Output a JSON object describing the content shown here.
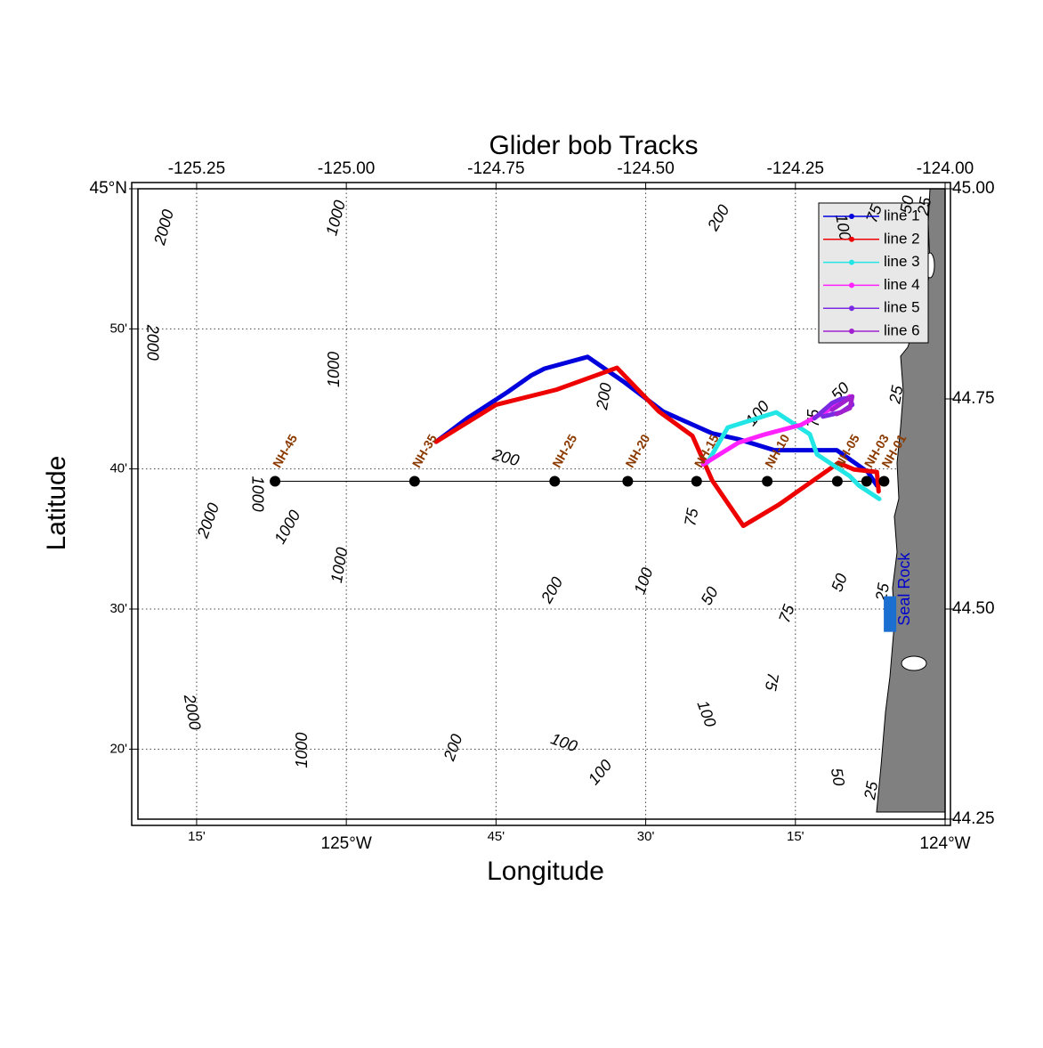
{
  "chart_data": {
    "type": "line",
    "title": "Glider bob Tracks",
    "x_label": "Longitude",
    "y_label": "Latitude",
    "xlim": [
      -125.348,
      -124.0
    ],
    "ylim": [
      44.25,
      45.0
    ],
    "grid": true,
    "legend": "upper right",
    "xticks": [
      -125.25,
      {
        "value": -125.0,
        "label": "-125.00"
      },
      -124.75,
      {
        "value": -124.5,
        "label": "-124.50"
      },
      -124.25,
      {
        "value": -124.0,
        "label": "-124.00"
      }
    ],
    "xticks_bottom": [
      {
        "value": -125.25,
        "label": "15'"
      },
      {
        "value": -125.0,
        "label": "125°W"
      },
      {
        "value": -124.75,
        "label": "45'"
      },
      {
        "value": -124.5,
        "label": "30'"
      },
      {
        "value": -124.25,
        "label": "15'"
      },
      {
        "value": -124.0,
        "label": "124°W"
      }
    ],
    "yticks": [
      {
        "value": 45.0,
        "label": "45.00"
      },
      44.75,
      {
        "value": 44.5,
        "label": "44.50"
      },
      44.25
    ],
    "yticks_left": [
      {
        "value": 45.0,
        "label": "45°N"
      },
      {
        "value": 44.8333,
        "label": "50'"
      },
      {
        "value": 44.6667,
        "label": "40'"
      },
      {
        "value": 44.5,
        "label": "30'"
      },
      {
        "value": 44.3333,
        "label": "20'"
      }
    ],
    "series": [
      {
        "name": "line 1",
        "color": "#0000dd",
        "x": [
          -124.85,
          -124.798,
          -124.731,
          -124.691,
          -124.669,
          -124.597,
          -124.538,
          -124.471,
          -124.389,
          -124.345,
          -124.285,
          -124.181,
          -124.129,
          -124.114
        ],
        "values": [
          44.699,
          44.727,
          44.758,
          44.778,
          44.786,
          44.8,
          44.771,
          44.735,
          44.709,
          44.702,
          44.689,
          44.689,
          44.663,
          44.647
        ]
      },
      {
        "name": "line 2",
        "color": "#ee0000",
        "x": [
          -124.85,
          -124.75,
          -124.649,
          -124.548,
          -124.478,
          -124.422,
          -124.389,
          -124.337,
          -124.278,
          -124.178,
          -124.152,
          -124.114,
          -124.111
        ],
        "values": [
          44.699,
          44.743,
          44.761,
          44.787,
          44.735,
          44.706,
          44.653,
          44.599,
          44.624,
          44.674,
          44.666,
          44.663,
          44.64
        ]
      },
      {
        "name": "line 3",
        "color": "#22e6e6",
        "x": [
          -124.397,
          -124.363,
          -124.282,
          -124.226,
          -124.214,
          -124.159,
          -124.144,
          -124.11
        ],
        "values": [
          44.674,
          44.716,
          44.734,
          44.708,
          44.684,
          44.658,
          44.647,
          44.631
        ]
      },
      {
        "name": "line 4",
        "color": "#ff22ff",
        "x": [
          -124.404,
          -124.345,
          -124.3,
          -124.241,
          -124.189,
          -124.159
        ],
        "values": [
          44.672,
          44.698,
          44.708,
          44.719,
          44.739,
          44.753
        ]
      },
      {
        "name": "line 5",
        "color": "#7a2be2",
        "x": [
          -124.218,
          -124.189,
          -124.174,
          -124.159,
          -124.155,
          -124.174,
          -124.204
        ],
        "values": [
          44.727,
          44.745,
          44.75,
          44.751,
          44.743,
          44.734,
          44.729
        ]
      },
      {
        "name": "line 6",
        "color": "#a020d0",
        "x": [
          -124.189,
          -124.166,
          -124.155,
          -124.159,
          -124.181
        ],
        "values": [
          44.737,
          44.748,
          44.753,
          44.739,
          44.732
        ]
      }
    ],
    "stations": [
      {
        "name": "NH-45",
        "x": -125.119,
        "y": 44.652
      },
      {
        "name": "NH-35",
        "x": -124.886,
        "y": 44.652
      },
      {
        "name": "NH-25",
        "x": -124.652,
        "y": 44.652
      },
      {
        "name": "NH-20",
        "x": -124.53,
        "y": 44.652
      },
      {
        "name": "NH-15",
        "x": -124.415,
        "y": 44.652
      },
      {
        "name": "NH-10",
        "x": -124.297,
        "y": 44.652
      },
      {
        "name": "NH-05",
        "x": -124.18,
        "y": 44.652
      },
      {
        "name": "NH-03",
        "x": -124.131,
        "y": 44.652
      },
      {
        "name": "NH-01",
        "x": -124.102,
        "y": 44.652
      }
    ],
    "landmark": {
      "label": "Seal Rock",
      "x": -124.092,
      "y": 44.494
    },
    "contour_labels": [
      {
        "text": "2000",
        "x": -125.303,
        "y": 44.954
      },
      {
        "text": "1000",
        "x": -125.016,
        "y": 44.965
      },
      {
        "text": "200",
        "x": -124.377,
        "y": 44.965
      },
      {
        "text": "100",
        "x": -124.172,
        "y": 44.954
      },
      {
        "text": "75",
        "x": -124.117,
        "y": 44.97
      },
      {
        "text": "50",
        "x": -124.062,
        "y": 44.981
      },
      {
        "text": "25",
        "x": -124.033,
        "y": 44.979
      },
      {
        "text": "2000",
        "x": -125.325,
        "y": 44.817
      },
      {
        "text": "1000",
        "x": -125.019,
        "y": 44.785
      },
      {
        "text": "200",
        "x": -124.568,
        "y": 44.753
      },
      {
        "text": "100",
        "x": -124.312,
        "y": 44.732
      },
      {
        "text": "75",
        "x": -124.218,
        "y": 44.727
      },
      {
        "text": "50",
        "x": -124.174,
        "y": 44.758
      },
      {
        "text": "25",
        "x": -124.08,
        "y": 44.755
      },
      {
        "text": "200",
        "x": -124.734,
        "y": 44.679
      },
      {
        "text": "1000",
        "x": -125.15,
        "y": 44.637
      },
      {
        "text": "2000",
        "x": -125.229,
        "y": 44.605
      },
      {
        "text": "1000",
        "x": -125.097,
        "y": 44.597
      },
      {
        "text": "1000",
        "x": -125.01,
        "y": 44.552
      },
      {
        "text": "75",
        "x": -124.422,
        "y": 44.609
      },
      {
        "text": "200",
        "x": -124.655,
        "y": 44.522
      },
      {
        "text": "100",
        "x": -124.502,
        "y": 44.533
      },
      {
        "text": "50",
        "x": -124.392,
        "y": 44.515
      },
      {
        "text": "50",
        "x": -124.175,
        "y": 44.531
      },
      {
        "text": "25",
        "x": -124.103,
        "y": 44.52
      },
      {
        "text": "75",
        "x": -124.263,
        "y": 44.494
      },
      {
        "text": "2000",
        "x": -125.259,
        "y": 44.377
      },
      {
        "text": "75",
        "x": -124.291,
        "y": 44.414
      },
      {
        "text": "100",
        "x": -124.4,
        "y": 44.375
      },
      {
        "text": "1000",
        "x": -125.073,
        "y": 44.332
      },
      {
        "text": "200",
        "x": -124.82,
        "y": 44.335
      },
      {
        "text": "100",
        "x": -124.637,
        "y": 44.34
      },
      {
        "text": "100",
        "x": -124.575,
        "y": 44.305
      },
      {
        "text": "50",
        "x": -124.181,
        "y": 44.3
      },
      {
        "text": "25",
        "x": -124.122,
        "y": 44.284
      }
    ]
  }
}
